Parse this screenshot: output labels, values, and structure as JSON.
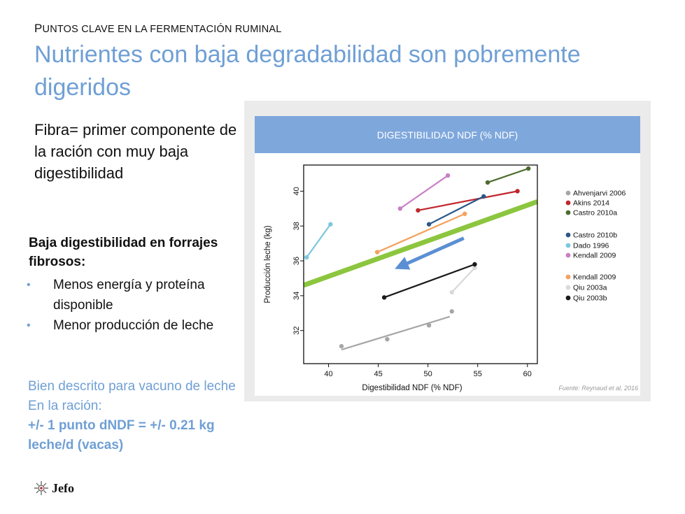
{
  "slide": {
    "eyebrow_first": "P",
    "eyebrow_rest": "UNTOS CLAVE EN LA FERMENTACIÓN RUMINAL",
    "title": "Nutrientes con baja degradabilidad son pobremente digeridos",
    "lead": "Fibra= primer componente de la ración con muy baja digestibilidad",
    "subhead": "Baja digestibilidad en forrajes fibrosos:",
    "bullets": [
      "Menos energía y proteína disponible",
      "Menor producción de leche"
    ],
    "note_line1": "Bien descrito para vacuno de leche",
    "note_line2": "En la ración:",
    "note_bold": "+/- 1 punto dNDF  = +/- 0.21 kg leche/d (vacas)",
    "logo_text": "Jefo"
  },
  "colors": {
    "accent": "#6f9fd5",
    "header": "#7ea7dc",
    "trend": "#8cc63f",
    "arrow": "#5b8fd3"
  },
  "chart_data": {
    "type": "line",
    "title": "DIGESTIBILIDAD NDF (% NDF)",
    "xlabel": "Digestibilidad NDF  (% NDF)",
    "ylabel": "Producción leche  (kg)",
    "xlim": [
      37.5,
      61
    ],
    "ylim": [
      30.1,
      41.5
    ],
    "xticks": [
      40,
      45,
      50,
      55,
      60
    ],
    "yticks": [
      32,
      34,
      36,
      38,
      40
    ],
    "source": "Fuente: Reynaud et al, 2016",
    "trend_line": {
      "x": [
        37.5,
        61
      ],
      "y": [
        34.6,
        39.4
      ]
    },
    "series": [
      {
        "name": "Ahvenjarvi 2006",
        "color": "#a6a6a6",
        "line": [
          [
            41.3,
            30.9
          ],
          [
            52.2,
            32.8
          ]
        ],
        "points": [
          [
            41.3,
            31.1
          ],
          [
            45.9,
            31.5
          ],
          [
            50.1,
            32.3
          ],
          [
            52.4,
            33.1
          ]
        ]
      },
      {
        "name": "Akins 2014",
        "color": "#c1272d",
        "line": [
          [
            49.0,
            38.9
          ],
          [
            59.0,
            40.0
          ]
        ],
        "points": [
          [
            49.0,
            38.9
          ],
          [
            59.0,
            40.0
          ]
        ]
      },
      {
        "name": "Castro 2010a",
        "color": "#4d6b2d",
        "line": [
          [
            56.0,
            40.5
          ],
          [
            60.1,
            41.3
          ]
        ],
        "points": [
          [
            56.0,
            40.5
          ],
          [
            60.1,
            41.3
          ]
        ]
      },
      {
        "name": "Castro 2010b",
        "color": "#2b5788",
        "line": [
          [
            50.1,
            38.1
          ],
          [
            55.6,
            39.7
          ]
        ],
        "points": [
          [
            50.1,
            38.1
          ],
          [
            55.6,
            39.7
          ]
        ]
      },
      {
        "name": "Dado 1996",
        "color": "#7cc7dc",
        "line": [
          [
            37.8,
            36.2
          ],
          [
            40.2,
            38.1
          ]
        ],
        "points": [
          [
            37.8,
            36.2
          ],
          [
            40.2,
            38.1
          ]
        ]
      },
      {
        "name": "Kendall 2009",
        "color": "#c87fc4",
        "line": [
          [
            47.2,
            39.0
          ],
          [
            52.0,
            40.9
          ]
        ],
        "points": [
          [
            47.2,
            39.0
          ],
          [
            52.0,
            40.9
          ]
        ]
      },
      {
        "name": "Kendall 2009",
        "color": "#f4a15e",
        "line": [
          [
            44.9,
            36.5
          ],
          [
            53.7,
            38.7
          ]
        ],
        "points": [
          [
            44.9,
            36.5
          ],
          [
            53.7,
            38.7
          ]
        ]
      },
      {
        "name": "Qiu 2003a",
        "color": "#d9d9d9",
        "line": [
          [
            52.4,
            34.2
          ],
          [
            54.7,
            35.6
          ]
        ],
        "points": [
          [
            52.4,
            34.2
          ],
          [
            54.7,
            35.6
          ]
        ]
      },
      {
        "name": "Qiu 2003b",
        "color": "#1a1a1a",
        "line": [
          [
            45.6,
            33.9
          ],
          [
            54.7,
            35.8
          ]
        ],
        "points": [
          [
            45.6,
            33.9
          ],
          [
            54.7,
            35.8
          ]
        ]
      }
    ],
    "arrow": {
      "from": [
        53.6,
        37.3
      ],
      "to": [
        47.3,
        35.7
      ]
    }
  }
}
